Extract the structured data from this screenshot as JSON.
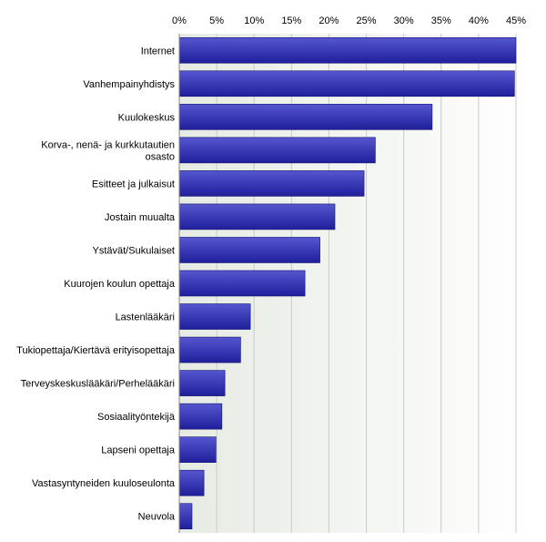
{
  "chart_data": {
    "type": "bar",
    "orientation": "horizontal",
    "title": "",
    "xlabel": "",
    "ylabel": "",
    "xlim": [
      0,
      45
    ],
    "ticks": [
      "0%",
      "5%",
      "10%",
      "15%",
      "20%",
      "25%",
      "30%",
      "35%",
      "40%",
      "45%"
    ],
    "tick_values": [
      0,
      5,
      10,
      15,
      20,
      25,
      30,
      35,
      40,
      45
    ],
    "grid": true,
    "legend": "none",
    "categories": [
      "Internet",
      "Vanhempainyhdistys",
      "Kuulokeskus",
      "Korva-, nenä- ja kurkkutautien osasto",
      "Esitteet ja julkaisut",
      "Jostain muualta",
      "Ystävät/Sukulaiset",
      "Kuurojen koulun opettaja",
      "Lastenlääkäri",
      "Tukiopettaja/Kiertävä erityisopettaja",
      "Terveyskeskuslääkäri/Perhelääkäri",
      "Sosiaalityöntekijä",
      "Lapseni opettaja",
      "Vastasyntyneiden kuuloseulonta",
      "Neuvola"
    ],
    "category_lines": [
      [
        "Internet"
      ],
      [
        "Vanhempainyhdistys"
      ],
      [
        "Kuulokeskus"
      ],
      [
        "Korva-, nenä- ja kurkkutautien",
        "osasto"
      ],
      [
        "Esitteet ja julkaisut"
      ],
      [
        "Jostain muualta"
      ],
      [
        "Ystävät/Sukulaiset"
      ],
      [
        "Kuurojen koulun opettaja"
      ],
      [
        "Lastenlääkäri"
      ],
      [
        "Tukiopettaja/Kiertävä erityisopettaja"
      ],
      [
        "Terveyskeskuslääkäri/Perhelääkäri"
      ],
      [
        "Sosiaalityöntekijä"
      ],
      [
        "Lapseni opettaja"
      ],
      [
        "Vastasyntyneiden kuuloseulonta"
      ],
      [
        "Neuvola"
      ]
    ],
    "values": [
      45.0,
      44.8,
      33.8,
      26.2,
      24.7,
      20.8,
      18.8,
      16.8,
      9.5,
      8.2,
      6.1,
      5.7,
      4.9,
      3.3,
      1.7
    ],
    "colors": {
      "bar_top": "#5656cf",
      "bar_bottom": "#1f1f9c",
      "bar_edge": "#12126e",
      "plot_left": "#e6ebe3",
      "plot_right": "#ffffff",
      "grid": "#c8ccc4",
      "axis": "#8a8a8a"
    }
  }
}
